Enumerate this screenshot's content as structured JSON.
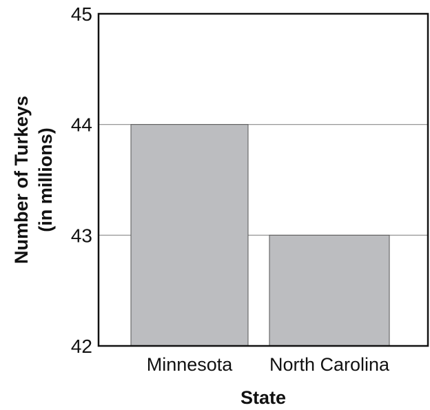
{
  "chart_data": {
    "type": "bar",
    "categories": [
      "Minnesota",
      "North Carolina"
    ],
    "values": [
      44,
      43
    ],
    "xlabel": "State",
    "ylabel_lines": [
      "Number of Turkeys",
      "(in millions)"
    ],
    "ylim": [
      42,
      45
    ],
    "yticks": [
      "42",
      "43",
      "44",
      "45"
    ],
    "grid": true,
    "legend": "none"
  },
  "colors": {
    "bar_fill": "#bcbdc0",
    "bar_stroke": "#555555",
    "grid": "#8a8a8a",
    "axis": "#111111"
  }
}
